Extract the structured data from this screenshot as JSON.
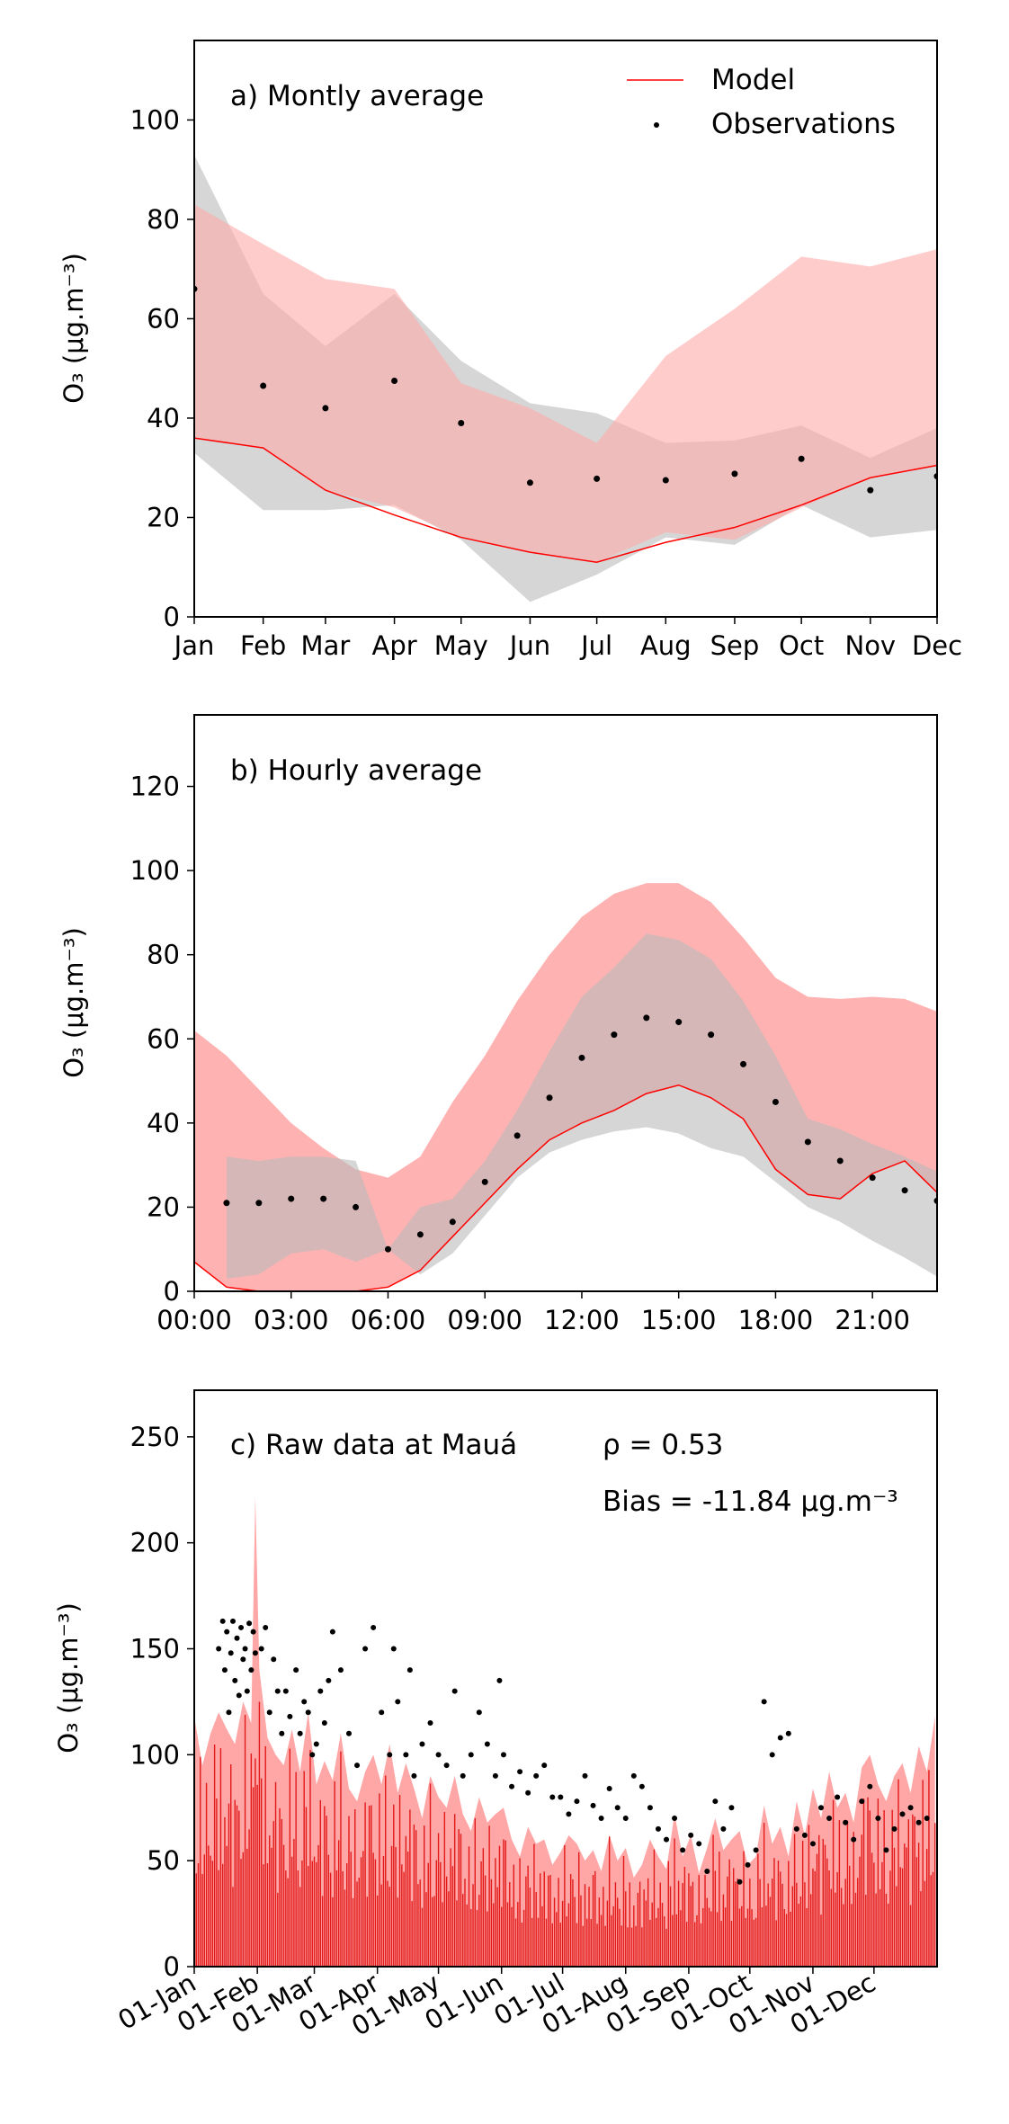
{
  "figure": {
    "panels": [
      {
        "id": "a",
        "annotation": "a) Montly average",
        "ylabel": "O₃ (μg.m⁻³)",
        "legend": {
          "entries": [
            {
              "label": "Model",
              "kind": "line",
              "color": "#ff0000"
            },
            {
              "label": "Observations",
              "kind": "dot",
              "color": "#000000"
            }
          ],
          "placement": "upper-right"
        }
      },
      {
        "id": "b",
        "annotation": "b) Hourly average",
        "ylabel": "O₃ (μg.m⁻³)"
      },
      {
        "id": "c",
        "annotation": "c) Raw data at Mauá",
        "stat_rho": "ρ = 0.53",
        "stat_bias": "Bias = -11.84 μg.m⁻³",
        "ylabel": "O₃ (μg.m⁻³)"
      }
    ],
    "colors": {
      "model_line": "#ff0000",
      "model_band": "#ffaaaa",
      "obs_band": "#bbbbbb",
      "obs_dot": "#000000"
    }
  },
  "chart_data": [
    {
      "type": "line",
      "title": "a) Montly average",
      "xlabel": "",
      "ylabel": "O3 (μg.m-3)",
      "categories": [
        "Jan",
        "Feb",
        "Mar",
        "Apr",
        "May",
        "Jun",
        "Jul",
        "Aug",
        "Sep",
        "Oct",
        "Nov",
        "Dec"
      ],
      "x": [
        0,
        31,
        59,
        90,
        120,
        151,
        181,
        212,
        243,
        273,
        304,
        334
      ],
      "xlim": [
        0,
        334
      ],
      "ylim": [
        0,
        116
      ],
      "yticks": [
        0,
        20,
        40,
        60,
        80,
        100
      ],
      "grid": false,
      "legend": "upper-right",
      "series": [
        {
          "name": "Model",
          "kind": "line",
          "values": [
            36,
            34,
            25.5,
            20.5,
            16,
            13,
            11,
            15,
            18,
            22.5,
            28,
            30.5
          ]
        },
        {
          "name": "Observations",
          "kind": "scatter",
          "values": [
            66,
            46.5,
            42,
            47.5,
            39,
            27,
            27.8,
            27.5,
            28.8,
            31.8,
            25.5,
            28.3
          ]
        },
        {
          "kind": "band",
          "lower": [
            36,
            34,
            25.5,
            22,
            16,
            13,
            11,
            17,
            15.5,
            22,
            28,
            30.5
          ],
          "upper": [
            83,
            75,
            68,
            66,
            47,
            42,
            35,
            52.5,
            62,
            72.5,
            70.5,
            74
          ]
        },
        {
          "kind": "band",
          "lower": [
            33,
            21.5,
            21.5,
            22.5,
            15.5,
            3,
            8.5,
            16,
            14.5,
            22.5,
            16,
            17.5
          ],
          "upper": [
            93,
            65,
            54.5,
            65,
            51.5,
            43,
            41,
            35,
            35.5,
            38.5,
            32,
            38
          ]
        }
      ]
    },
    {
      "type": "line",
      "title": "b) Hourly average",
      "xlabel": "",
      "ylabel": "O3 (μg.m-3)",
      "xlim": [
        0,
        23
      ],
      "ylim": [
        0,
        137
      ],
      "xticks": [
        0,
        3,
        6,
        9,
        12,
        15,
        18,
        21
      ],
      "xtick_labels": [
        "00:00",
        "03:00",
        "06:00",
        "09:00",
        "12:00",
        "15:00",
        "18:00",
        "21:00"
      ],
      "yticks": [
        0,
        20,
        40,
        60,
        80,
        100,
        120
      ],
      "grid": false,
      "series": [
        {
          "name": "Model",
          "kind": "line",
          "x": [
            0,
            1,
            2,
            3,
            4,
            5,
            6,
            7,
            8,
            9,
            10,
            11,
            12,
            13,
            14,
            15,
            16,
            17,
            18,
            19,
            20,
            21,
            22,
            23
          ],
          "values": [
            7,
            1,
            0,
            0,
            0,
            0,
            1,
            5,
            13,
            21,
            29,
            36,
            40,
            43,
            47,
            49,
            46,
            41,
            29,
            23,
            22,
            28,
            31,
            23.5
          ]
        },
        {
          "name": "Observations",
          "kind": "scatter",
          "x": [
            1,
            2,
            3,
            4,
            5,
            6,
            7,
            8,
            9,
            10,
            11,
            12,
            13,
            14,
            15,
            16,
            17,
            18,
            19,
            20,
            21,
            22,
            23
          ],
          "values": [
            21,
            21,
            22,
            22,
            20,
            10,
            13.5,
            16.5,
            26,
            37,
            46,
            55.5,
            61,
            65,
            64,
            61,
            54,
            45,
            35.5,
            31,
            27,
            24,
            21.5
          ]
        },
        {
          "kind": "band",
          "x": [
            0,
            1,
            2,
            3,
            4,
            5,
            6,
            7,
            8,
            9,
            10,
            11,
            12,
            13,
            14,
            15,
            16,
            17,
            18,
            19,
            20,
            21,
            22,
            23
          ],
          "lower": [
            7,
            1,
            0,
            0,
            0,
            0,
            1,
            5,
            13,
            21,
            29,
            36,
            40,
            43,
            47,
            49,
            46,
            41,
            29,
            23,
            22,
            28,
            31,
            23.5
          ],
          "upper": [
            62,
            56,
            48,
            40,
            34,
            29,
            27,
            32,
            45,
            56,
            69,
            80,
            89,
            94.5,
            97,
            97,
            92.5,
            84,
            74.5,
            70,
            69.5,
            70,
            69.5,
            66.5
          ]
        },
        {
          "kind": "band",
          "x": [
            1,
            2,
            3,
            4,
            5,
            6,
            7,
            8,
            9,
            10,
            11,
            12,
            13,
            14,
            15,
            16,
            17,
            18,
            19,
            20,
            21,
            22,
            23
          ],
          "lower": [
            3,
            4,
            9,
            10,
            7,
            10,
            4,
            9,
            18,
            27,
            33,
            36,
            38,
            39,
            37.5,
            34,
            32,
            26,
            20,
            16.5,
            12,
            8,
            3.5
          ],
          "upper": [
            32,
            31,
            32,
            32,
            31,
            10,
            20,
            22,
            31,
            43,
            57,
            70,
            77,
            85,
            83.5,
            79,
            69,
            56,
            41,
            38.5,
            35,
            32,
            28.5
          ]
        }
      ]
    },
    {
      "type": "scatter",
      "title": "c) Raw data at Mauá",
      "xlabel": "",
      "ylabel": "O3 (μg.m-3)",
      "annotations": [
        "ρ = 0.53",
        "Bias = -11.84 μg.m-3"
      ],
      "xlim": [
        0,
        365
      ],
      "ylim": [
        0,
        272
      ],
      "xticks": [
        0,
        31,
        59,
        90,
        120,
        151,
        181,
        212,
        243,
        273,
        304,
        334
      ],
      "xtick_labels": [
        "01-Jan",
        "01-Feb",
        "01-Mar",
        "01-Apr",
        "01-May",
        "01-Jun",
        "01-Jul",
        "01-Aug",
        "01-Sep",
        "01-Oct",
        "01-Nov",
        "01-Dec"
      ],
      "yticks": [
        0,
        50,
        100,
        150,
        200,
        250
      ],
      "grid": false,
      "series": [
        {
          "name": "Model",
          "kind": "line",
          "x": [
            0,
            4,
            8,
            12,
            16,
            20,
            24,
            28,
            30,
            32,
            36,
            40,
            44,
            48,
            52,
            56,
            60,
            64,
            68,
            72,
            76,
            80,
            84,
            88,
            92,
            96,
            100,
            104,
            108,
            112,
            116,
            120,
            124,
            128,
            132,
            136,
            140,
            144,
            148,
            152,
            156,
            160,
            164,
            168,
            172,
            176,
            180,
            184,
            188,
            192,
            196,
            200,
            204,
            208,
            212,
            216,
            220,
            224,
            228,
            232,
            236,
            240,
            244,
            248,
            252,
            256,
            260,
            264,
            268,
            272,
            276,
            280,
            284,
            288,
            292,
            296,
            300,
            304,
            308,
            312,
            316,
            320,
            324,
            328,
            332,
            336,
            340,
            344,
            348,
            352,
            356,
            360,
            364
          ],
          "values": [
            118,
            95,
            110,
            120,
            112,
            105,
            125,
            115,
            222,
            140,
            108,
            100,
            95,
            112,
            92,
            120,
            86,
            97,
            88,
            110,
            84,
            78,
            92,
            100,
            86,
            105,
            82,
            96,
            84,
            70,
            90,
            80,
            75,
            90,
            72,
            64,
            80,
            68,
            72,
            75,
            60,
            52,
            66,
            58,
            60,
            48,
            54,
            62,
            58,
            50,
            55,
            45,
            62,
            50,
            56,
            42,
            48,
            60,
            52,
            46,
            72,
            52,
            62,
            44,
            56,
            70,
            55,
            60,
            64,
            48,
            52,
            76,
            58,
            66,
            52,
            78,
            62,
            84,
            70,
            92,
            75,
            82,
            68,
            94,
            100,
            86,
            78,
            90,
            96,
            82,
            104,
            92,
            118
          ]
        },
        {
          "name": "Observations",
          "kind": "scatter",
          "x": [
            12,
            14,
            15,
            16,
            17,
            18,
            19,
            20,
            21,
            22,
            23,
            24,
            25,
            26,
            27,
            28,
            29,
            30,
            33,
            35,
            37,
            39,
            41,
            43,
            45,
            47,
            50,
            52,
            54,
            56,
            58,
            60,
            62,
            64,
            66,
            68,
            72,
            76,
            80,
            84,
            88,
            92,
            96,
            98,
            100,
            104,
            106,
            108,
            112,
            116,
            120,
            124,
            128,
            132,
            136,
            140,
            144,
            148,
            150,
            152,
            156,
            160,
            164,
            168,
            172,
            176,
            180,
            184,
            188,
            192,
            196,
            200,
            204,
            208,
            212,
            216,
            220,
            224,
            228,
            232,
            236,
            240,
            244,
            248,
            252,
            256,
            260,
            264,
            268,
            272,
            276,
            280,
            284,
            288,
            292,
            296,
            300,
            304,
            308,
            312,
            316,
            320,
            324,
            328,
            332,
            336,
            340,
            344,
            348,
            352,
            356,
            360
          ],
          "values": [
            150,
            163,
            140,
            158,
            120,
            148,
            163,
            135,
            155,
            128,
            160,
            145,
            150,
            130,
            162,
            140,
            158,
            148,
            150,
            160,
            120,
            145,
            130,
            110,
            130,
            118,
            140,
            110,
            125,
            120,
            100,
            105,
            130,
            115,
            135,
            158,
            140,
            110,
            95,
            150,
            160,
            120,
            100,
            150,
            125,
            100,
            140,
            90,
            105,
            115,
            100,
            95,
            130,
            90,
            100,
            120,
            105,
            90,
            135,
            100,
            85,
            92,
            82,
            90,
            95,
            80,
            80,
            72,
            78,
            90,
            76,
            70,
            84,
            75,
            70,
            90,
            85,
            75,
            65,
            60,
            70,
            55,
            62,
            58,
            45,
            78,
            65,
            75,
            40,
            48,
            55,
            125,
            100,
            108,
            110,
            65,
            62,
            58,
            75,
            70,
            80,
            68,
            60,
            78,
            85,
            70,
            55,
            65,
            72,
            75,
            68,
            70
          ]
        }
      ]
    }
  ]
}
